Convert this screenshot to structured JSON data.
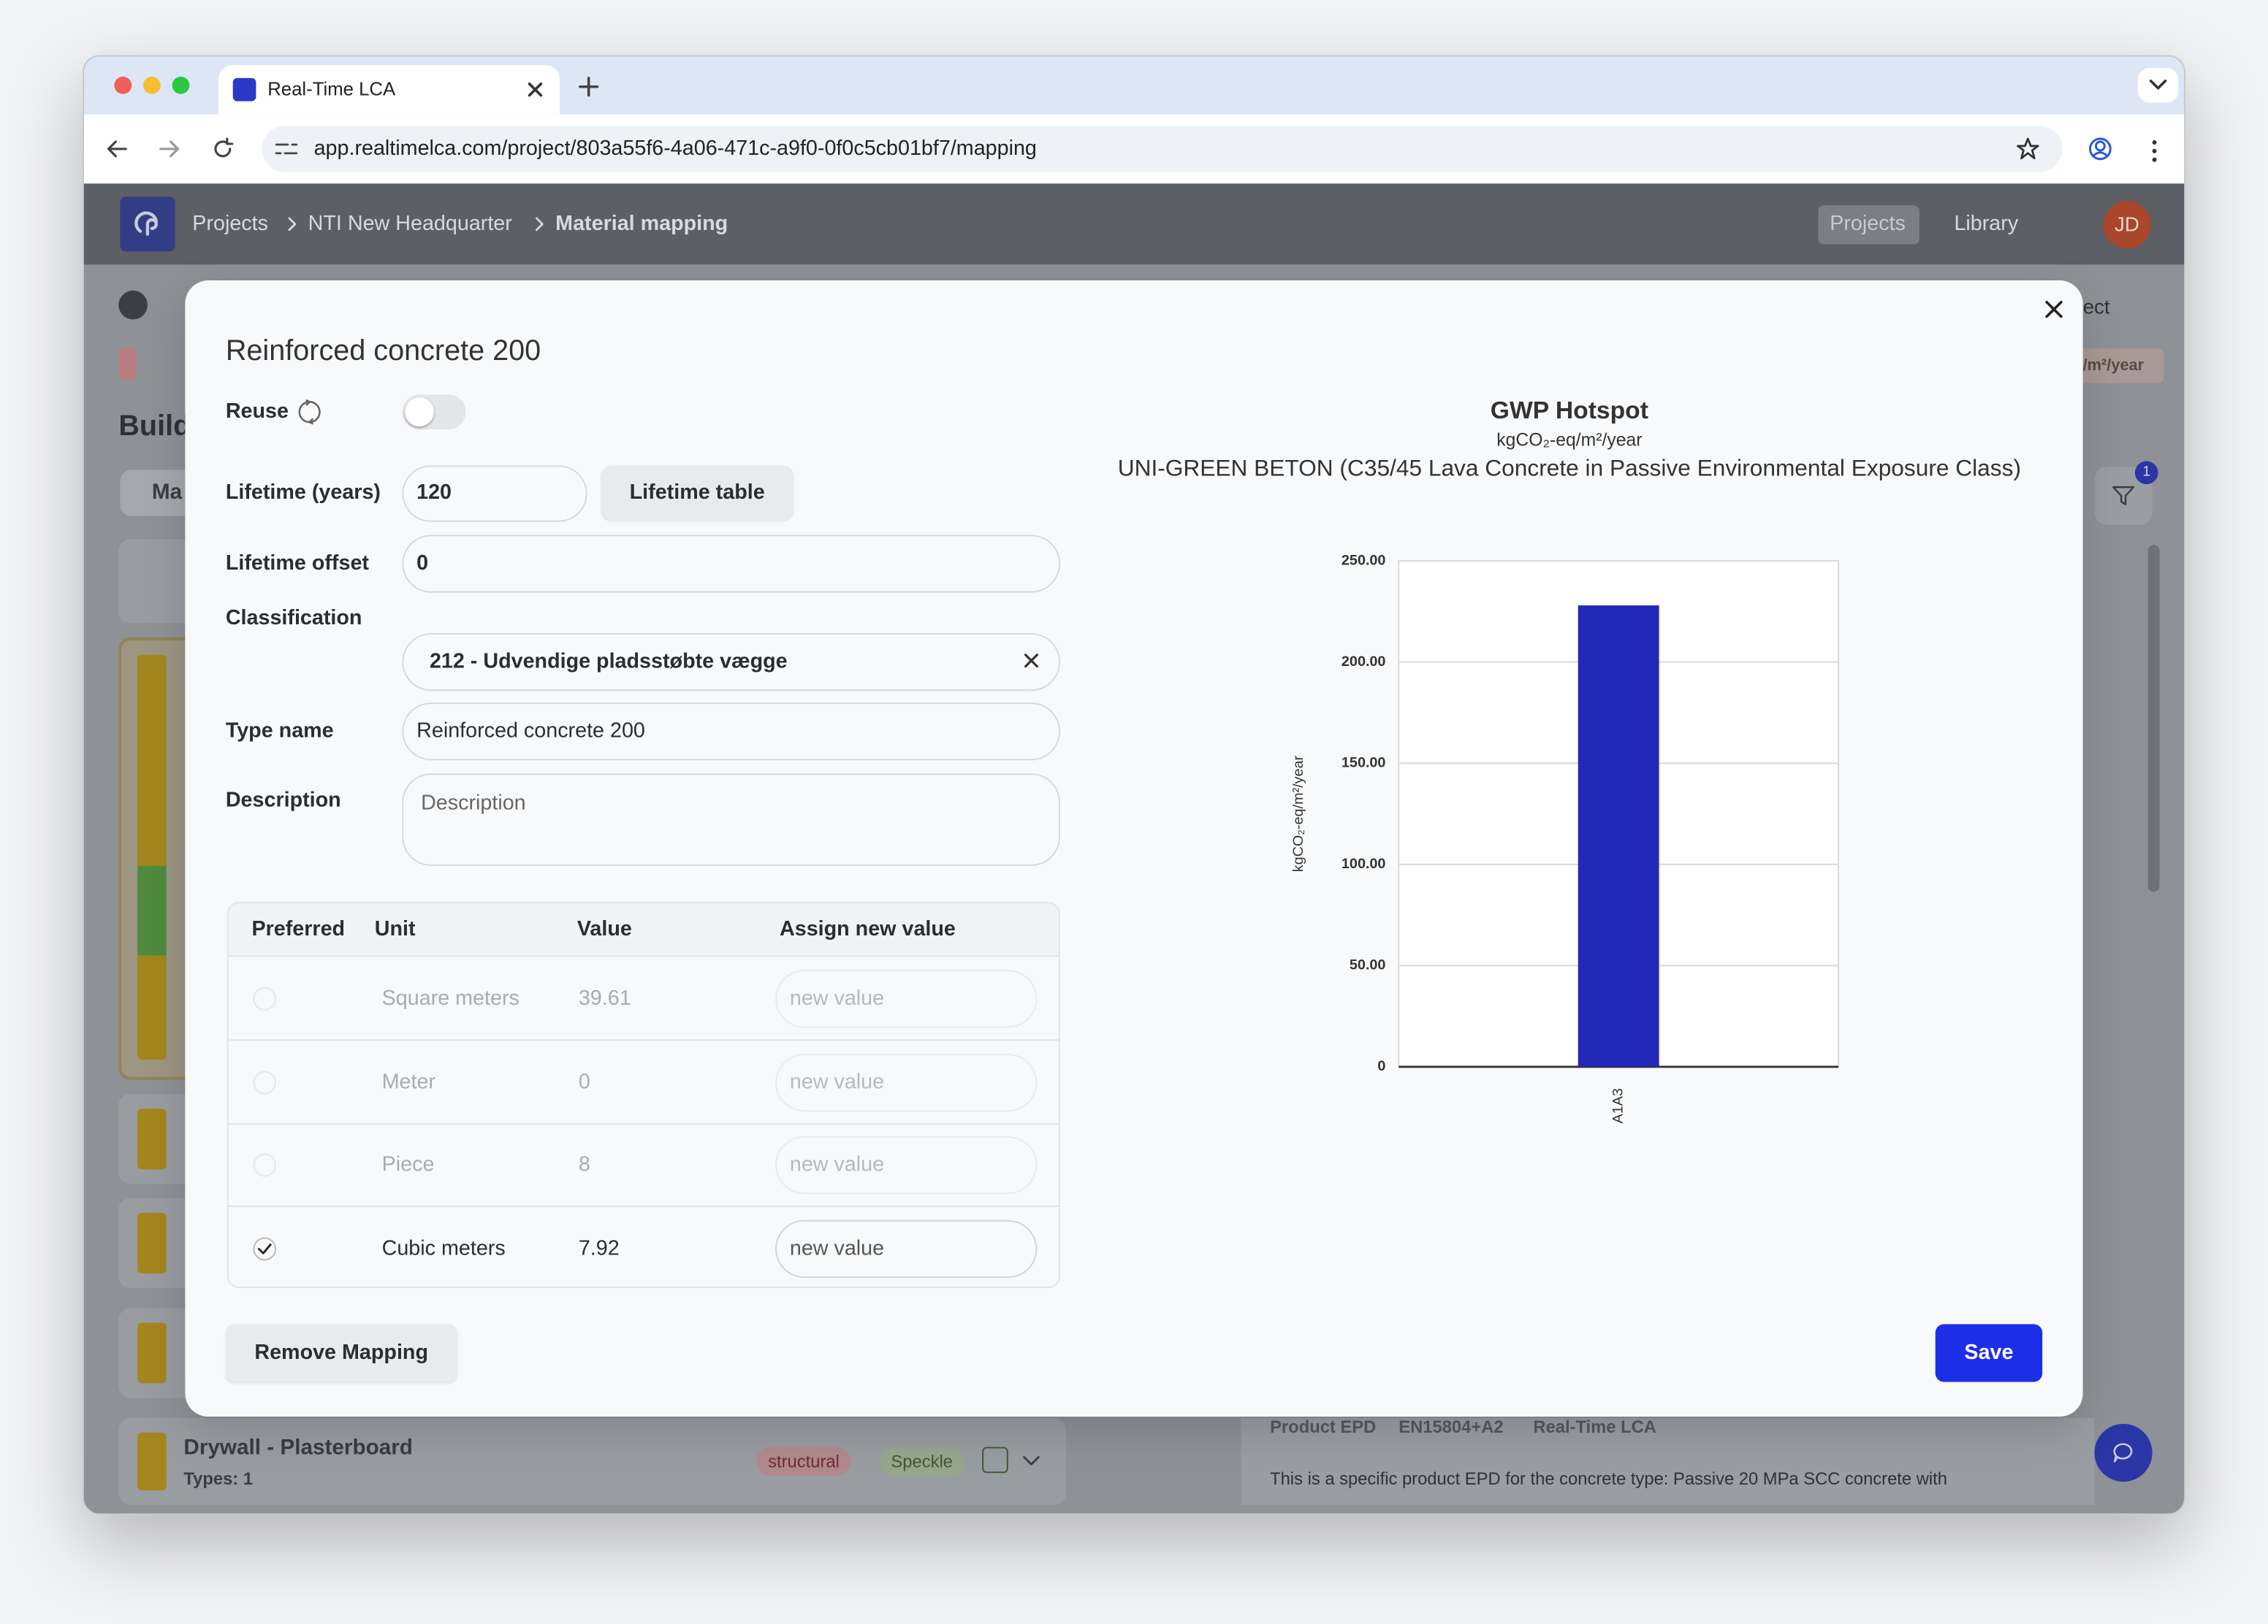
{
  "browser": {
    "tab_title": "Real-Time LCA",
    "url": "app.realtimelca.com/project/803a55f6-4a06-471c-a9f0-0f0c5cb01bf7/mapping"
  },
  "header": {
    "breadcrumbs": [
      "Projects",
      "NTI New Headquarter",
      "Material mapping"
    ],
    "nav": [
      "Projects",
      "Library"
    ],
    "avatar": "JD"
  },
  "background": {
    "heading": "Build",
    "tab": "Ma",
    "top_right": "ect",
    "unit_pill": "/m²/year",
    "filter_badge": "1",
    "card": {
      "title": "Drywall - Plasterboard",
      "types": "Types: 1",
      "tags": [
        "structural",
        "Speckle"
      ]
    },
    "epd": {
      "tags": [
        "Product EPD",
        "EN15804+A2",
        "Real-Time LCA"
      ],
      "description": "This is a specific product EPD for the concrete type: Passive 20 MPa SCC concrete with"
    }
  },
  "modal": {
    "title": "Reinforced concrete 200",
    "reuse_label": "Reuse",
    "lifetime_label": "Lifetime (years)",
    "lifetime_value": "120",
    "lifetime_button": "Lifetime table",
    "offset_label": "Lifetime offset",
    "offset_value": "0",
    "classification_label": "Classification",
    "classification_value": "212 - Udvendige pladsstøbte vægge",
    "type_name_label": "Type name",
    "type_name_value": "Reinforced concrete 200",
    "description_label": "Description",
    "description_placeholder": "Description",
    "table": {
      "headers": [
        "Preferred",
        "Unit",
        "Value",
        "Assign new value"
      ],
      "input_placeholder": "new value",
      "rows": [
        {
          "unit": "Square meters",
          "value": 39.61,
          "preferred": false
        },
        {
          "unit": "Meter",
          "value": 0,
          "preferred": false
        },
        {
          "unit": "Piece",
          "value": 8,
          "preferred": false
        },
        {
          "unit": "Cubic meters",
          "value": 7.92,
          "preferred": true
        }
      ]
    },
    "remove_button": "Remove Mapping",
    "save_button": "Save",
    "chart": {
      "type": "bar",
      "title": "GWP Hotspot",
      "subtitle": "kgCO₂-eq/m²/year",
      "name": "UNI-GREEN BETON (C35/45 Lava Concrete in Passive Environmental Exposure Class)",
      "y_label": "kgCO₂-eq/m²/year",
      "categories": [
        "A1A3"
      ],
      "values": [
        228
      ],
      "color": "#2328b8",
      "ylim": [
        0,
        250
      ],
      "yticks": [
        0,
        {
          "value": 50,
          "label": "50.00"
        },
        {
          "value": 100,
          "label": "100.00"
        },
        {
          "value": 150,
          "label": "150.00"
        },
        {
          "value": 200,
          "label": "200.00"
        },
        {
          "value": 250,
          "label": "250.00"
        }
      ],
      "grid": true
    }
  }
}
